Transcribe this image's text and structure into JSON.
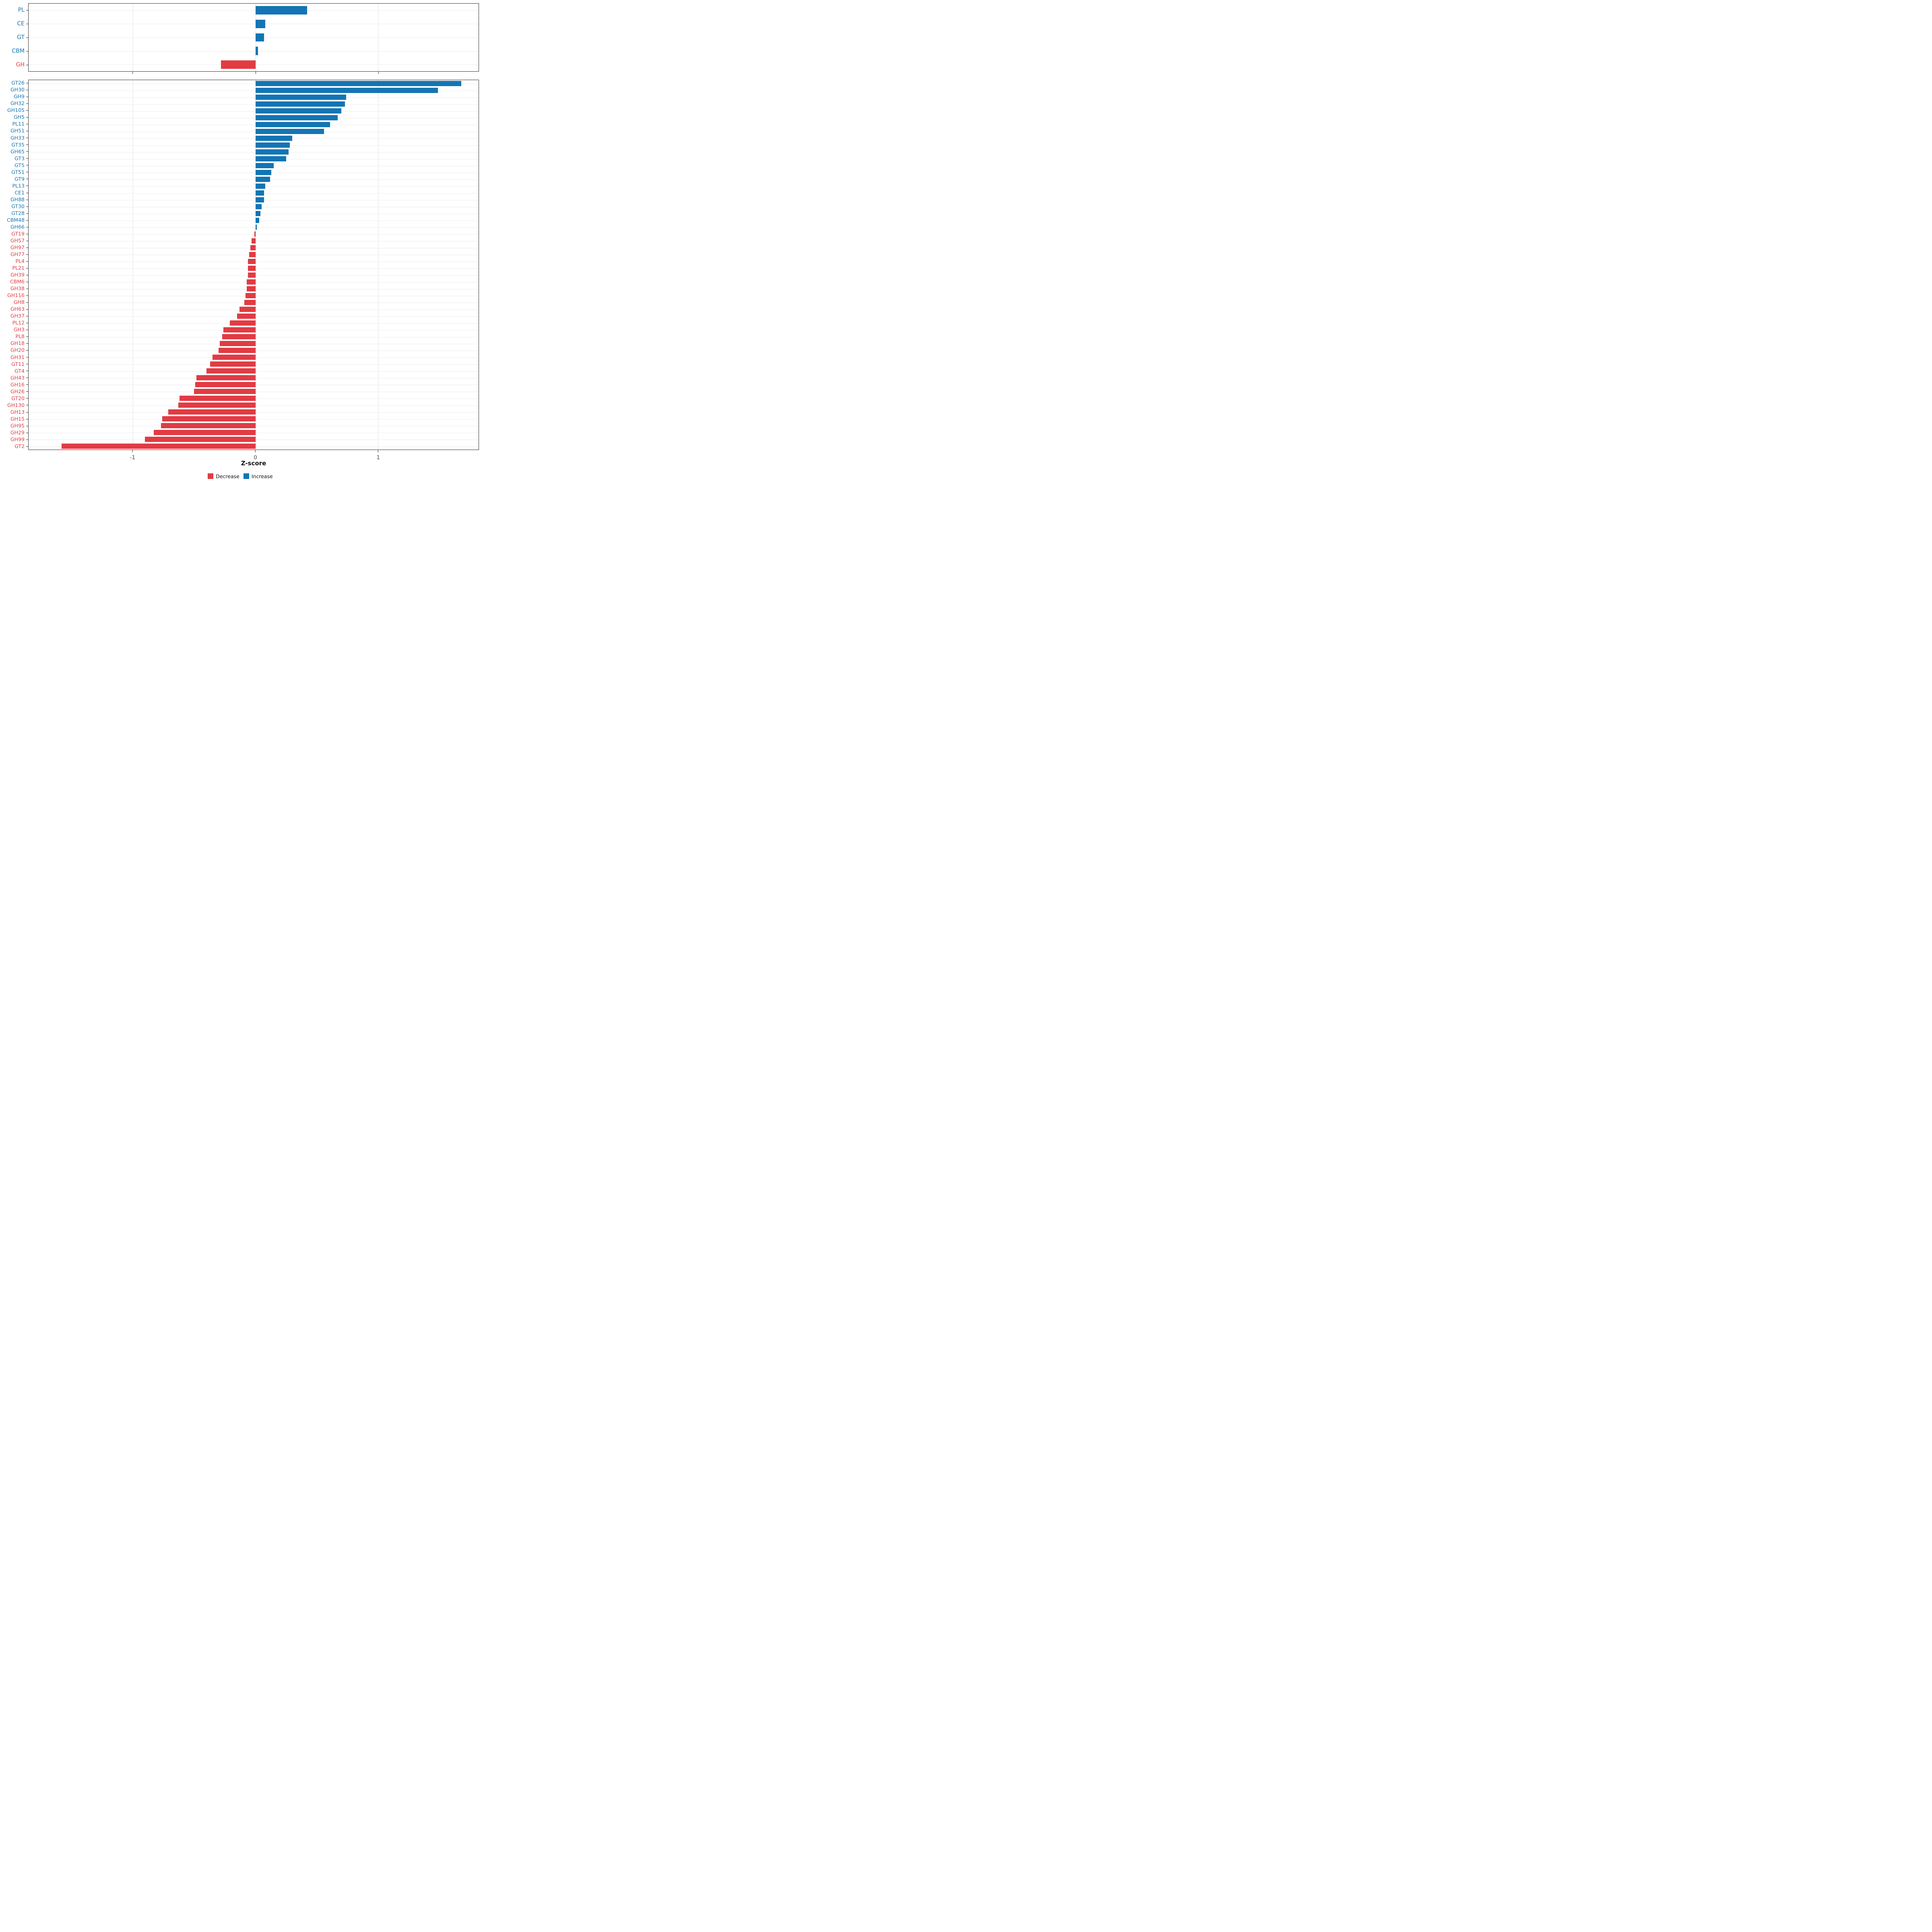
{
  "colors": {
    "decrease": "#E23B43",
    "increase": "#1375B4",
    "panel_border": "#333333",
    "gridline": "#e3e3e3"
  },
  "axis": {
    "xlabel": "Z-score",
    "xticks": [
      -1,
      0,
      1
    ],
    "xtick_labels": [
      "-1",
      "0",
      "1"
    ]
  },
  "legend": {
    "decrease_label": "Decrease",
    "increase_label": "Increase"
  },
  "chart_data": [
    {
      "type": "bar",
      "orientation": "horizontal",
      "panel": "cazyme-class-summary",
      "categories": [
        "PL",
        "CE",
        "GT",
        "CBM",
        "GH"
      ],
      "values": [
        0.42,
        0.08,
        0.07,
        0.02,
        -0.28
      ],
      "xlim": [
        -1.85,
        1.82
      ],
      "xticks": [
        -1,
        0,
        1
      ],
      "grid": true,
      "legend_position": "bottom"
    },
    {
      "type": "bar",
      "orientation": "horizontal",
      "panel": "cazyme-family-detail",
      "categories": [
        "GT26",
        "GH30",
        "GH9",
        "GH32",
        "GH105",
        "GH5",
        "PL11",
        "GH51",
        "GH33",
        "GT35",
        "GH65",
        "GT3",
        "GT5",
        "GT51",
        "GT9",
        "PL13",
        "CE1",
        "GH88",
        "GT30",
        "GT28",
        "CBM48",
        "GH66",
        "GT19",
        "GH57",
        "GH97",
        "GH77",
        "PL4",
        "PL21",
        "GH39",
        "CBM6",
        "GH38",
        "GH116",
        "GH8",
        "GH63",
        "GH37",
        "PL12",
        "GH3",
        "PL8",
        "GH18",
        "GH20",
        "GH31",
        "GT11",
        "GT4",
        "GH43",
        "GH16",
        "GH26",
        "GT20",
        "GH130",
        "GH13",
        "GH15",
        "GH95",
        "GH29",
        "GH99",
        "GT2"
      ],
      "values": [
        1.68,
        1.49,
        0.74,
        0.73,
        0.7,
        0.67,
        0.61,
        0.56,
        0.3,
        0.28,
        0.27,
        0.25,
        0.15,
        0.13,
        0.12,
        0.08,
        0.07,
        0.07,
        0.05,
        0.04,
        0.03,
        0.01,
        -0.01,
        -0.03,
        -0.04,
        -0.05,
        -0.06,
        -0.06,
        -0.06,
        -0.07,
        -0.07,
        -0.08,
        -0.09,
        -0.13,
        -0.15,
        -0.21,
        -0.26,
        -0.27,
        -0.29,
        -0.3,
        -0.35,
        -0.37,
        -0.4,
        -0.48,
        -0.49,
        -0.5,
        -0.62,
        -0.63,
        -0.71,
        -0.76,
        -0.77,
        -0.83,
        -0.9,
        -1.58
      ],
      "xlim": [
        -1.85,
        1.82
      ],
      "xticks": [
        -1,
        0,
        1
      ],
      "xlabel": "Z-score",
      "grid": true
    }
  ]
}
